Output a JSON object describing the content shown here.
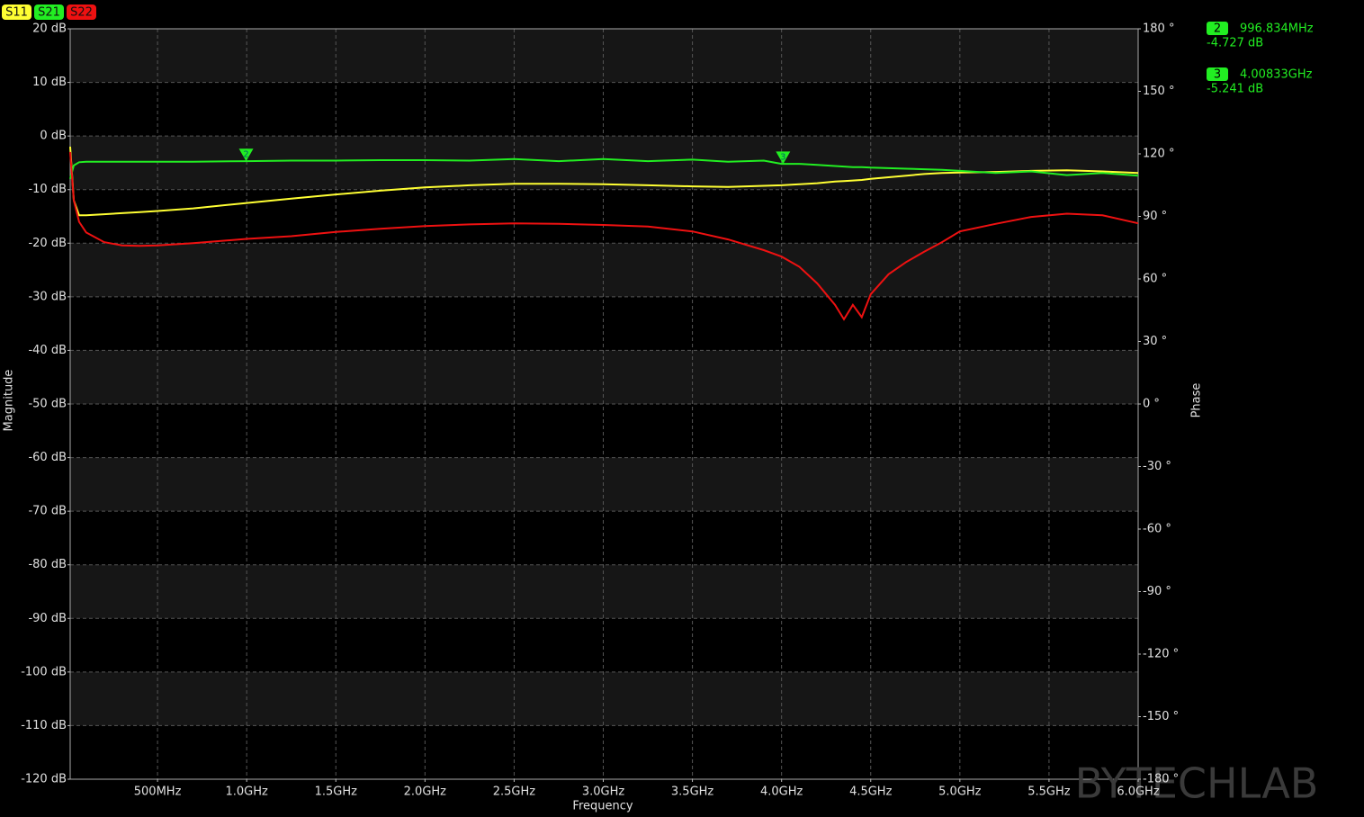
{
  "chart_data": {
    "type": "line",
    "xlabel": "Frequency",
    "ylabel": "Magnitude",
    "y2label": "Phase",
    "watermark": "BYTECHLAB",
    "grid": true,
    "xlim": [
      10,
      6000
    ],
    "xticks": [
      {
        "value": 500,
        "label": "500MHz"
      },
      {
        "value": 1000,
        "label": "1.0GHz"
      },
      {
        "value": 1500,
        "label": "1.5GHz"
      },
      {
        "value": 2000,
        "label": "2.0GHz"
      },
      {
        "value": 2500,
        "label": "2.5GHz"
      },
      {
        "value": 3000,
        "label": "3.0GHz"
      },
      {
        "value": 3500,
        "label": "3.5GHz"
      },
      {
        "value": 4000,
        "label": "4.0GHz"
      },
      {
        "value": 4500,
        "label": "4.5GHz"
      },
      {
        "value": 5000,
        "label": "5.0GHz"
      },
      {
        "value": 5500,
        "label": "5.5GHz"
      },
      {
        "value": 6000,
        "label": "6.0GHz"
      }
    ],
    "ylim": [
      -120,
      20
    ],
    "yticks": [
      {
        "value": 20,
        "label": "20 dB"
      },
      {
        "value": 10,
        "label": "10 dB"
      },
      {
        "value": 0,
        "label": "0 dB"
      },
      {
        "value": -10,
        "label": "-10 dB"
      },
      {
        "value": -20,
        "label": "-20 dB"
      },
      {
        "value": -30,
        "label": "-30 dB"
      },
      {
        "value": -40,
        "label": "-40 dB"
      },
      {
        "value": -50,
        "label": "-50 dB"
      },
      {
        "value": -60,
        "label": "-60 dB"
      },
      {
        "value": -70,
        "label": "-70 dB"
      },
      {
        "value": -80,
        "label": "-80 dB"
      },
      {
        "value": -90,
        "label": "-90 dB"
      },
      {
        "value": -100,
        "label": "-100 dB"
      },
      {
        "value": -110,
        "label": "-110 dB"
      },
      {
        "value": -120,
        "label": "-120 dB"
      }
    ],
    "y2lim": [
      -180,
      180
    ],
    "y2ticks": [
      {
        "value": 180,
        "label": "180 °"
      },
      {
        "value": 150,
        "label": "150 °"
      },
      {
        "value": 120,
        "label": "120 °"
      },
      {
        "value": 90,
        "label": "90 °"
      },
      {
        "value": 60,
        "label": "60 °"
      },
      {
        "value": 30,
        "label": "30 °"
      },
      {
        "value": 0,
        "label": "0 °"
      },
      {
        "value": -30,
        "label": "-30 °"
      },
      {
        "value": -60,
        "label": "-60 °"
      },
      {
        "value": -90,
        "label": "-90 °"
      },
      {
        "value": -120,
        "label": "-120 °"
      },
      {
        "value": -150,
        "label": "-150 °"
      },
      {
        "value": -180,
        "label": "-180 °"
      }
    ],
    "x": [
      10,
      30,
      60,
      100,
      200,
      300,
      400,
      500,
      700,
      1000,
      1250,
      1500,
      1750,
      2000,
      2250,
      2500,
      2750,
      3000,
      3250,
      3500,
      3700,
      3900,
      4000,
      4100,
      4200,
      4300,
      4350,
      4400,
      4450,
      4500,
      4600,
      4700,
      4800,
      4900,
      5000,
      5200,
      5400,
      5600,
      5800,
      6000
    ],
    "series": [
      {
        "name": "S11",
        "color": "#ffff33",
        "values": [
          -2,
          -12,
          -14.8,
          -14.8,
          -14.6,
          -14.4,
          -14.2,
          -14.0,
          -13.5,
          -12.5,
          -11.7,
          -10.9,
          -10.2,
          -9.6,
          -9.2,
          -8.9,
          -8.9,
          -9.0,
          -9.2,
          -9.4,
          -9.5,
          -9.3,
          -9.2,
          -9.0,
          -8.8,
          -8.5,
          -8.4,
          -8.3,
          -8.2,
          -8.0,
          -7.7,
          -7.4,
          -7.1,
          -6.9,
          -6.8,
          -6.7,
          -6.5,
          -6.4,
          -6.6,
          -6.9
        ]
      },
      {
        "name": "S21",
        "color": "#22ee22",
        "values": [
          -8,
          -5.5,
          -4.9,
          -4.8,
          -4.8,
          -4.8,
          -4.8,
          -4.8,
          -4.8,
          -4.7,
          -4.6,
          -4.6,
          -4.5,
          -4.5,
          -4.6,
          -4.3,
          -4.7,
          -4.3,
          -4.7,
          -4.4,
          -4.8,
          -4.6,
          -5.2,
          -5.2,
          -5.4,
          -5.6,
          -5.7,
          -5.8,
          -5.8,
          -5.9,
          -6.0,
          -6.1,
          -6.2,
          -6.3,
          -6.5,
          -6.9,
          -6.6,
          -7.3,
          -6.9,
          -7.4
        ]
      },
      {
        "name": "S22",
        "color": "#ee1111",
        "values": [
          -3,
          -12,
          -16,
          -18,
          -19.8,
          -20.4,
          -20.5,
          -20.4,
          -20,
          -19.2,
          -18.7,
          -17.9,
          -17.3,
          -16.8,
          -16.5,
          -16.3,
          -16.4,
          -16.6,
          -16.9,
          -17.8,
          -19.3,
          -21.3,
          -22.5,
          -24.4,
          -27.5,
          -31.5,
          -34.2,
          -31.5,
          -33.8,
          -29.5,
          -25.8,
          -23.5,
          -21.6,
          -19.8,
          -17.8,
          -16.4,
          -15.1,
          -14.5,
          -14.8,
          -16.3
        ]
      }
    ],
    "markers": [
      {
        "id": "2",
        "x": 996.834,
        "x_label": "996.834MHz",
        "value": -4.727,
        "value_label": "-4.727 dB"
      },
      {
        "id": "3",
        "x": 4008.33,
        "x_label": "4.00833GHz",
        "value": -5.241,
        "value_label": "-5.241 dB"
      }
    ],
    "marker_color": "#22ee22"
  }
}
